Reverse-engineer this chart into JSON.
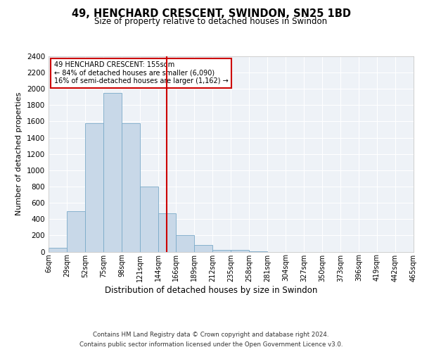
{
  "title": "49, HENCHARD CRESCENT, SWINDON, SN25 1BD",
  "subtitle": "Size of property relative to detached houses in Swindon",
  "xlabel": "Distribution of detached houses by size in Swindon",
  "ylabel": "Number of detached properties",
  "footer1": "Contains HM Land Registry data © Crown copyright and database right 2024.",
  "footer2": "Contains public sector information licensed under the Open Government Licence v3.0.",
  "annotation_title": "49 HENCHARD CRESCENT: 155sqm",
  "annotation_line1": "← 84% of detached houses are smaller (6,090)",
  "annotation_line2": "16% of semi-detached houses are larger (1,162) →",
  "bar_color": "#c8d8e8",
  "bar_edge_color": "#7aaac8",
  "vline_color": "#cc0000",
  "vline_x": 155,
  "categories": [
    "6sqm",
    "29sqm",
    "52sqm",
    "75sqm",
    "98sqm",
    "121sqm",
    "144sqm",
    "166sqm",
    "189sqm",
    "212sqm",
    "235sqm",
    "258sqm",
    "281sqm",
    "304sqm",
    "327sqm",
    "350sqm",
    "373sqm",
    "396sqm",
    "419sqm",
    "442sqm",
    "465sqm"
  ],
  "bin_edges": [
    6,
    29,
    52,
    75,
    98,
    121,
    144,
    166,
    189,
    212,
    235,
    258,
    281,
    304,
    327,
    350,
    373,
    396,
    419,
    442,
    465
  ],
  "bar_heights": [
    50,
    500,
    1580,
    1950,
    1580,
    800,
    470,
    200,
    80,
    25,
    18,
    5,
    0,
    0,
    0,
    0,
    0,
    0,
    0,
    0
  ],
  "ylim": [
    0,
    2400
  ],
  "yticks": [
    0,
    200,
    400,
    600,
    800,
    1000,
    1200,
    1400,
    1600,
    1800,
    2000,
    2200,
    2400
  ],
  "bg_color": "#eef2f7",
  "grid_color": "#ffffff",
  "annotation_box_color": "#ffffff",
  "annotation_box_edge": "#cc0000",
  "fig_bg": "#ffffff"
}
